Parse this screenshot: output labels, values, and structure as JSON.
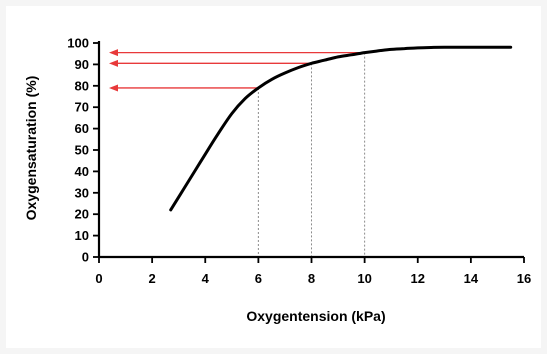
{
  "chart_data": {
    "type": "line",
    "xlabel": "Oxygentension (kPa)",
    "ylabel": "Oxygensaturation (%)",
    "xlim": [
      0,
      16
    ],
    "ylim": [
      0,
      100
    ],
    "x_ticks": [
      "0",
      "2",
      "4",
      "6",
      "8",
      "10",
      "12",
      "14",
      "16"
    ],
    "y_ticks": [
      "0",
      "10",
      "20",
      "30",
      "40",
      "50",
      "60",
      "70",
      "80",
      "90",
      "100"
    ],
    "x_tick_values": [
      0,
      2,
      4,
      6,
      8,
      10,
      12,
      14,
      16
    ],
    "y_tick_values": [
      0,
      10,
      20,
      30,
      40,
      50,
      60,
      70,
      80,
      90,
      100
    ],
    "grid": false,
    "legend": "none",
    "series": [
      {
        "color": "#000000",
        "x": [
          2.7,
          3.2,
          3.8,
          4.4,
          5.0,
          5.5,
          6.0,
          6.5,
          7.0,
          7.5,
          8.0,
          8.5,
          9.0,
          9.5,
          10.0,
          10.5,
          11.0,
          11.5,
          12.0,
          12.5,
          13.0,
          14.0,
          15.0,
          15.5
        ],
        "y": [
          22,
          32,
          44,
          56,
          67,
          74,
          79,
          83,
          86,
          88.5,
          90.5,
          92,
          93.5,
          94.5,
          95.5,
          96.3,
          97,
          97.4,
          97.7,
          97.9,
          98,
          98,
          98,
          98
        ]
      }
    ],
    "reference_lines": [
      {
        "x": 6,
        "y": 79
      },
      {
        "x": 8,
        "y": 90.5
      },
      {
        "x": 10,
        "y": 95.5
      }
    ],
    "arrows": [
      {
        "y": 79
      },
      {
        "y": 90.5
      },
      {
        "y": 95.5
      }
    ],
    "colors": {
      "curve": "#000000",
      "arrow": "#e8393a",
      "guide": "#8c8c8c",
      "axis": "#000000"
    }
  }
}
